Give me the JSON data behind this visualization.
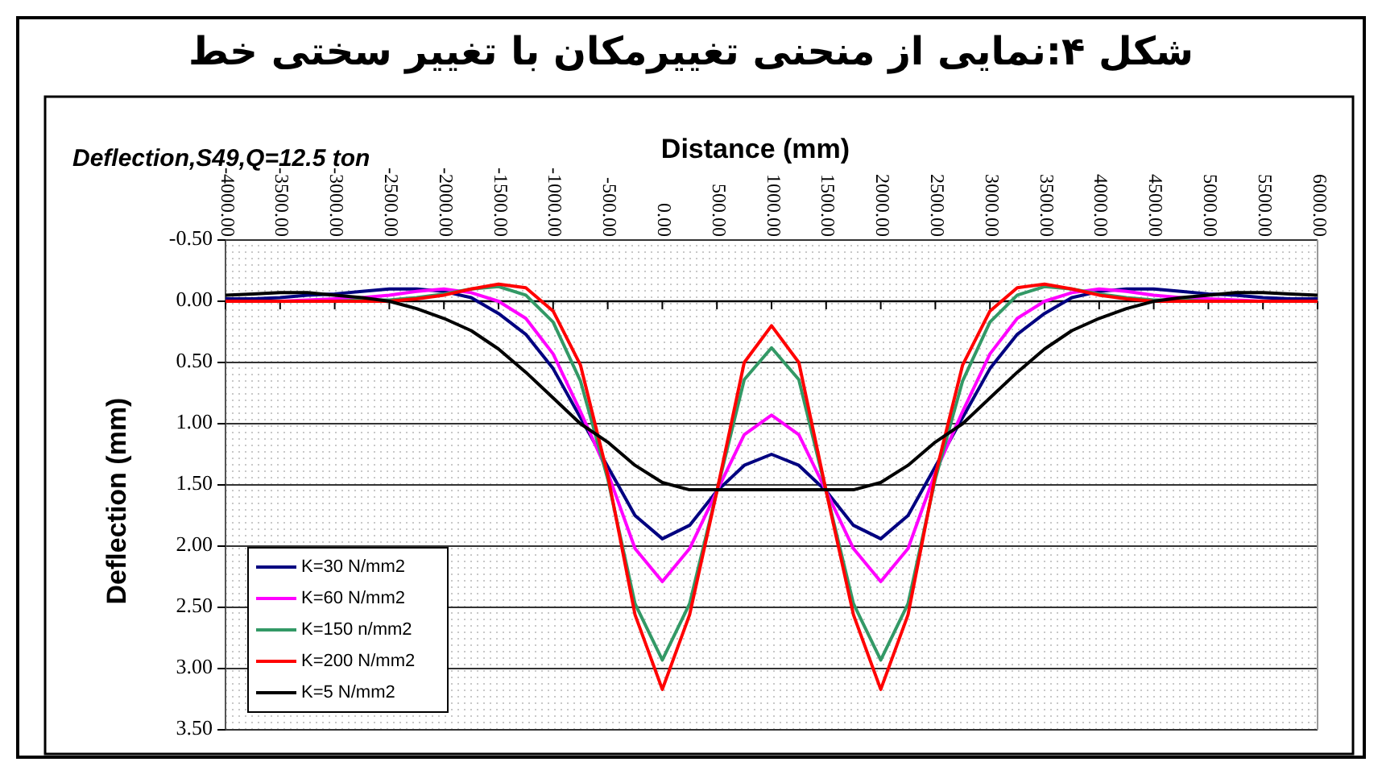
{
  "chart_data": {
    "type": "line",
    "title": "شکل ۴:نمایی از منحنی تغییرمکان با تغییر سختی خط",
    "xlabel": "Distance (mm)",
    "ylabel": "Deflection (mm)",
    "annotations": [
      "Deflection,S49,Q=12.5 ton"
    ],
    "x": [
      -4000,
      -3750,
      -3500,
      -3250,
      -3000,
      -2750,
      -2500,
      -2250,
      -2000,
      -1750,
      -1500,
      -1250,
      -1000,
      -750,
      -500,
      -250,
      0,
      250,
      500,
      750,
      1000,
      1250,
      1500,
      1750,
      2000,
      2250,
      2500,
      2750,
      3000,
      3250,
      3500,
      3750,
      4000,
      4250,
      4500,
      4750,
      5000,
      5250,
      5500,
      5750,
      6000
    ],
    "series": [
      {
        "name": "K=30 N/mm2",
        "color": "#000080",
        "values": [
          -0.02,
          -0.02,
          -0.03,
          -0.05,
          -0.06,
          -0.08,
          -0.1,
          -0.1,
          -0.08,
          -0.03,
          0.1,
          0.27,
          0.55,
          0.95,
          1.35,
          1.75,
          1.94,
          1.83,
          1.55,
          1.34,
          1.25,
          1.34,
          1.55,
          1.83,
          1.94,
          1.75,
          1.35,
          0.95,
          0.55,
          0.27,
          0.1,
          -0.03,
          -0.08,
          -0.1,
          -0.1,
          -0.08,
          -0.06,
          -0.05,
          -0.03,
          -0.02,
          -0.02
        ]
      },
      {
        "name": "K=60 N/mm2",
        "color": "#ff00ff",
        "values": [
          0.0,
          0.0,
          0.0,
          -0.01,
          -0.02,
          -0.03,
          -0.05,
          -0.08,
          -0.1,
          -0.07,
          0.0,
          0.14,
          0.43,
          0.9,
          1.4,
          2.02,
          2.29,
          2.02,
          1.55,
          1.09,
          0.93,
          1.09,
          1.55,
          2.02,
          2.29,
          2.02,
          1.4,
          0.9,
          0.43,
          0.14,
          0.0,
          -0.07,
          -0.1,
          -0.08,
          -0.05,
          -0.03,
          -0.02,
          -0.01,
          0.0,
          0.0,
          0.0
        ]
      },
      {
        "name": "K=150 n/mm2",
        "color": "#339966",
        "values": [
          null,
          null,
          null,
          0.0,
          0.0,
          -0.01,
          -0.01,
          -0.03,
          -0.06,
          -0.1,
          -0.12,
          -0.05,
          0.17,
          0.65,
          1.45,
          2.47,
          2.93,
          2.47,
          1.55,
          0.64,
          0.38,
          0.64,
          1.55,
          2.47,
          2.93,
          2.47,
          1.45,
          0.65,
          0.17,
          -0.05,
          -0.12,
          -0.1,
          -0.06,
          -0.03,
          -0.01,
          -0.01,
          0.0,
          0.0,
          null,
          null,
          null
        ]
      },
      {
        "name": "K=200 N/mm2",
        "color": "#ff0000",
        "values": [
          0.0,
          0.0,
          0.0,
          0.0,
          0.0,
          0.0,
          0.0,
          -0.02,
          -0.05,
          -0.1,
          -0.14,
          -0.11,
          0.08,
          0.52,
          1.42,
          2.56,
          3.17,
          2.56,
          1.55,
          0.5,
          0.2,
          0.5,
          1.55,
          2.56,
          3.17,
          2.56,
          1.42,
          0.52,
          0.08,
          -0.11,
          -0.14,
          -0.1,
          -0.05,
          -0.02,
          0.0,
          0.0,
          0.0,
          0.0,
          0.0,
          0.0,
          0.0
        ]
      },
      {
        "name": "K=5 N/mm2",
        "color": "#000000",
        "values": [
          -0.05,
          -0.06,
          -0.07,
          -0.07,
          -0.05,
          -0.03,
          0.0,
          0.06,
          0.14,
          0.24,
          0.39,
          0.58,
          0.79,
          1.0,
          1.15,
          1.34,
          1.48,
          1.54,
          1.54,
          1.54,
          1.54,
          1.54,
          1.54,
          1.54,
          1.48,
          1.34,
          1.15,
          1.0,
          0.79,
          0.58,
          0.39,
          0.24,
          0.14,
          0.06,
          0.0,
          -0.03,
          -0.05,
          -0.07,
          -0.07,
          -0.06,
          -0.05
        ]
      }
    ],
    "xlim": [
      -4000,
      6000
    ],
    "xticks": [
      {
        "value": -4000,
        "label": "-4000.00"
      },
      {
        "value": -3500,
        "label": "-3500.00"
      },
      {
        "value": -3000,
        "label": "-3000.00"
      },
      {
        "value": -2500,
        "label": "-2500.00"
      },
      {
        "value": -2000,
        "label": "-2000.00"
      },
      {
        "value": -1500,
        "label": "-1500.00"
      },
      {
        "value": -1000,
        "label": "-1000.00"
      },
      {
        "value": -500,
        "label": "-500.00"
      },
      {
        "value": 0,
        "label": "0.00"
      },
      {
        "value": 500,
        "label": "500.00"
      },
      {
        "value": 1000,
        "label": "1000.00"
      },
      {
        "value": 1500,
        "label": "1500.00"
      },
      {
        "value": 2000,
        "label": "2000.00"
      },
      {
        "value": 2500,
        "label": "2500.00"
      },
      {
        "value": 3000,
        "label": "3000.00"
      },
      {
        "value": 3500,
        "label": "3500.00"
      },
      {
        "value": 4000,
        "label": "4000.00"
      },
      {
        "value": 4500,
        "label": "4500.00"
      },
      {
        "value": 5000,
        "label": "5000.00"
      },
      {
        "value": 5500,
        "label": "5500.00"
      },
      {
        "value": 6000,
        "label": "6000.00"
      }
    ],
    "ylim": [
      3.5,
      -0.5
    ],
    "yticks": [
      {
        "value": -0.5,
        "label": "-0.50"
      },
      {
        "value": 0,
        "label": "0.00"
      },
      {
        "value": 0.5,
        "label": "0.50"
      },
      {
        "value": 1,
        "label": "1.00"
      },
      {
        "value": 1.5,
        "label": "1.50"
      },
      {
        "value": 2,
        "label": "2.00"
      },
      {
        "value": 2.5,
        "label": "2.50"
      },
      {
        "value": 3,
        "label": "3.00"
      },
      {
        "value": 3.5,
        "label": "3.50"
      }
    ],
    "grid": "y",
    "legend": "bottom left",
    "marker": "none",
    "line_style": "solid"
  }
}
